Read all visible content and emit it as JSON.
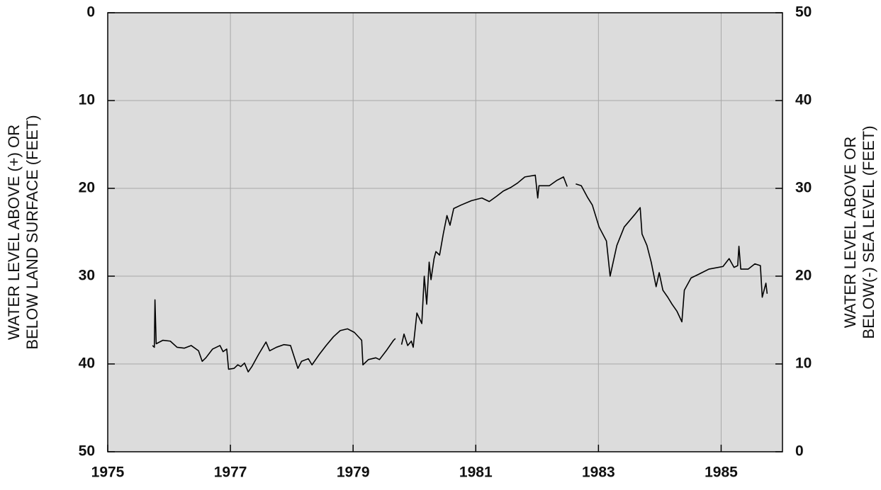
{
  "chart_data": {
    "type": "line",
    "ylabel": [
      "WATER LEVEL ABOVE (+) OR",
      "BELOW LAND SURFACE (FEET)"
    ],
    "y2label": [
      "WATER LEVEL ABOVE OR",
      "BELOW(-) SEA LEVEL (FEET)"
    ],
    "color": "#000000",
    "background": "#dcdcdc",
    "grid": true,
    "xlim": [
      1975,
      1986
    ],
    "xticks": [
      1975,
      1977,
      1979,
      1981,
      1983,
      1985
    ],
    "ylim": [
      50,
      0
    ],
    "yticks": [
      0,
      10,
      20,
      30,
      40,
      50
    ],
    "y2lim": [
      0,
      50
    ],
    "y2ticks": [
      0,
      10,
      20,
      30,
      40,
      50
    ],
    "x": [
      1975.73,
      1975.76,
      1975.77,
      1975.79,
      1975.9,
      1976.02,
      1976.13,
      1976.25,
      1976.36,
      1976.48,
      1976.54,
      1976.6,
      1976.71,
      1976.83,
      1976.88,
      1976.94,
      1976.97,
      1977.06,
      1977.12,
      1977.17,
      1977.23,
      1977.29,
      1977.35,
      1977.46,
      1977.58,
      1977.64,
      1977.75,
      1977.87,
      1977.98,
      1978.1,
      1978.16,
      1978.27,
      1978.33,
      1978.45,
      1978.56,
      1978.68,
      1978.79,
      1978.91,
      1979.02,
      1979.14,
      1979.16,
      1979.25,
      1979.37,
      1979.43,
      1979.54,
      1979.66,
      1979.69,
      1979.74,
      1979.79,
      1979.83,
      1979.89,
      1979.95,
      1979.98,
      1980.04,
      1980.12,
      1980.16,
      1980.2,
      1980.24,
      1980.27,
      1980.32,
      1980.35,
      1980.41,
      1980.47,
      1980.53,
      1980.58,
      1980.64,
      1980.76,
      1980.93,
      1981.1,
      1981.22,
      1981.34,
      1981.45,
      1981.57,
      1981.68,
      1981.8,
      1981.97,
      1982.01,
      1982.03,
      1982.2,
      1982.32,
      1982.43,
      1982.49,
      1982.56,
      1982.63,
      1982.72,
      1982.82,
      1982.9,
      1983.01,
      1983.13,
      1983.19,
      1983.24,
      1983.3,
      1983.42,
      1983.59,
      1983.68,
      1983.71,
      1983.79,
      1983.86,
      1983.94,
      1983.99,
      1984.05,
      1984.13,
      1984.2,
      1984.28,
      1984.36,
      1984.4,
      1984.51,
      1984.63,
      1984.8,
      1985.03,
      1985.13,
      1985.21,
      1985.27,
      1985.29,
      1985.32,
      1985.44,
      1985.55,
      1985.64,
      1985.67,
      1985.73,
      1985.75
    ],
    "values": [
      37.9,
      38.1,
      32.7,
      37.7,
      37.3,
      37.4,
      38.1,
      38.2,
      37.9,
      38.5,
      39.7,
      39.3,
      38.3,
      37.9,
      38.6,
      38.3,
      40.6,
      40.5,
      40.1,
      40.3,
      39.9,
      40.9,
      40.3,
      38.9,
      37.5,
      38.5,
      38.1,
      37.8,
      37.9,
      40.5,
      39.7,
      39.4,
      40.1,
      38.9,
      37.9,
      36.9,
      36.2,
      36.0,
      36.4,
      37.3,
      40.1,
      39.5,
      39.3,
      39.5,
      38.5,
      37.3,
      37.1,
      null,
      37.8,
      36.6,
      37.9,
      37.4,
      38.1,
      34.2,
      35.4,
      30.0,
      33.2,
      28.4,
      30.4,
      28.0,
      27.2,
      27.6,
      25.2,
      23.1,
      24.2,
      22.3,
      21.9,
      21.4,
      21.1,
      21.5,
      20.9,
      20.3,
      19.9,
      19.4,
      18.7,
      18.5,
      21.1,
      19.7,
      19.7,
      19.1,
      18.7,
      19.8,
      null,
      19.5,
      19.7,
      21.0,
      21.9,
      24.4,
      26.0,
      30.0,
      28.4,
      26.5,
      24.4,
      23.0,
      22.2,
      25.2,
      26.5,
      28.4,
      31.2,
      29.6,
      31.6,
      32.4,
      33.2,
      34.0,
      35.2,
      31.6,
      30.2,
      29.8,
      29.2,
      28.9,
      28.0,
      29.0,
      28.8,
      26.6,
      29.2,
      29.2,
      28.6,
      28.8,
      32.4,
      30.8,
      32.0
    ]
  }
}
